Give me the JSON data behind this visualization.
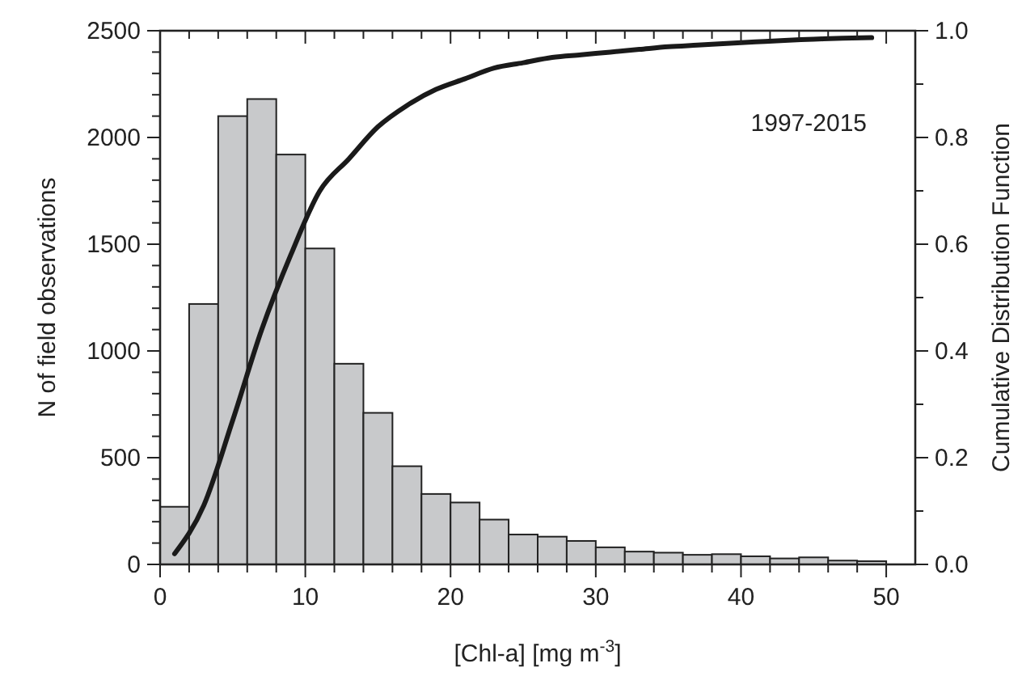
{
  "chart_data": {
    "type": "histogram",
    "xlabel": "[Chl-a] [mg m$^{-3}$]",
    "ylabel": "N of field observations",
    "y2label": "Cumulative Distribution Function",
    "annotations": [
      "1997-2015"
    ],
    "bins": [
      0,
      2,
      4,
      6,
      8,
      10,
      12,
      14,
      16,
      18,
      20,
      22,
      24,
      26,
      28,
      30,
      32,
      34,
      36,
      38,
      40,
      42,
      44,
      46,
      48,
      50
    ],
    "values": [
      270,
      1220,
      2100,
      2180,
      1920,
      1480,
      940,
      710,
      460,
      330,
      290,
      210,
      140,
      130,
      110,
      80,
      60,
      55,
      45,
      48,
      38,
      28,
      33,
      18,
      15
    ],
    "color": "#c8c9cb",
    "series": [
      {
        "type": "line",
        "axis": "y2",
        "color": "#1a1a1a",
        "x": [
          1,
          3,
          5,
          7,
          9,
          11,
          13,
          15,
          17,
          19,
          21,
          23,
          25,
          27,
          29,
          31,
          33,
          35,
          37,
          39,
          41,
          43,
          45,
          47,
          49
        ],
        "values": [
          0.02,
          0.11,
          0.27,
          0.44,
          0.58,
          0.7,
          0.76,
          0.82,
          0.86,
          0.89,
          0.91,
          0.93,
          0.94,
          0.95,
          0.955,
          0.96,
          0.965,
          0.97,
          0.973,
          0.976,
          0.979,
          0.982,
          0.984,
          0.986,
          0.987
        ]
      }
    ],
    "xlim": [
      0,
      52
    ],
    "xticks": [
      0,
      {
        "value": 2,
        "label": null
      },
      {
        "value": 4,
        "label": null
      },
      {
        "value": 6,
        "label": null
      },
      {
        "value": 8,
        "label": null
      },
      10,
      {
        "value": 12,
        "label": null
      },
      {
        "value": 14,
        "label": null
      },
      {
        "value": 16,
        "label": null
      },
      {
        "value": 18,
        "label": null
      },
      20,
      {
        "value": 22,
        "label": null
      },
      {
        "value": 24,
        "label": null
      },
      {
        "value": 26,
        "label": null
      },
      {
        "value": 28,
        "label": null
      },
      30,
      {
        "value": 32,
        "label": null
      },
      {
        "value": 34,
        "label": null
      },
      {
        "value": 36,
        "label": null
      },
      {
        "value": 38,
        "label": null
      },
      40,
      {
        "value": 42,
        "label": null
      },
      {
        "value": 44,
        "label": null
      },
      {
        "value": 46,
        "label": null
      },
      {
        "value": 48,
        "label": null
      },
      50
    ],
    "ylim": [
      0,
      2500
    ],
    "yticks": [
      0,
      {
        "value": 100,
        "label": null
      },
      {
        "value": 200,
        "label": null
      },
      {
        "value": 300,
        "label": null
      },
      {
        "value": 400,
        "label": null
      },
      500,
      {
        "value": 600,
        "label": null
      },
      {
        "value": 700,
        "label": null
      },
      {
        "value": 800,
        "label": null
      },
      {
        "value": 900,
        "label": null
      },
      1000,
      {
        "value": 1100,
        "label": null
      },
      {
        "value": 1200,
        "label": null
      },
      {
        "value": 1300,
        "label": null
      },
      {
        "value": 1400,
        "label": null
      },
      1500,
      {
        "value": 1600,
        "label": null
      },
      {
        "value": 1700,
        "label": null
      },
      {
        "value": 1800,
        "label": null
      },
      {
        "value": 1900,
        "label": null
      },
      2000,
      {
        "value": 2100,
        "label": null
      },
      {
        "value": 2200,
        "label": null
      },
      {
        "value": 2300,
        "label": null
      },
      {
        "value": 2400,
        "label": null
      },
      2500
    ],
    "y2lim": [
      0,
      1
    ],
    "y2ticks": [
      {
        "value": 0,
        "label": "0.0"
      },
      {
        "value": 0.1,
        "label": null
      },
      0.2,
      {
        "value": 0.3,
        "label": null
      },
      0.4,
      {
        "value": 0.5,
        "label": null
      },
      0.6,
      {
        "value": 0.7,
        "label": null
      },
      0.8,
      {
        "value": 0.9,
        "label": null
      },
      {
        "value": 1,
        "label": "1.0"
      }
    ],
    "grid": false
  }
}
